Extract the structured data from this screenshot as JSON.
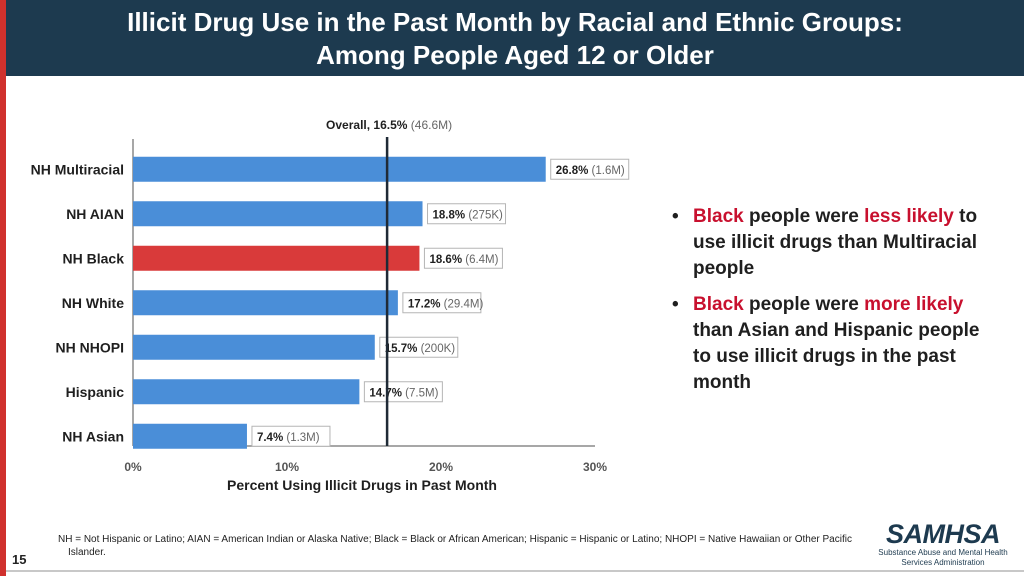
{
  "slide": {
    "title_line1": "Illicit Drug Use in the Past Month by Racial and Ethnic Groups:",
    "title_line2": "Among People Aged 12 or Older",
    "page_number": "15",
    "footnote": "NH = Not Hispanic or Latino; AIAN = American Indian or Alaska Native; Black = Black or African American; Hispanic = Hispanic or Latino; NHOPI = Native Hawaiian or Other Pacific Islander.",
    "logo_word": "SAMHSA",
    "logo_sub_line1": "Substance Abuse and Mental Health",
    "logo_sub_line2": "Services Administration"
  },
  "bullets": [
    {
      "dot": "•",
      "parts": [
        {
          "text": "Black",
          "style": "red"
        },
        {
          "text": " people were ",
          "style": "normal"
        },
        {
          "text": "less likely",
          "style": "red"
        },
        {
          "text": " to use illicit drugs than Multiracial people",
          "style": "normal"
        }
      ]
    },
    {
      "dot": "•",
      "parts": [
        {
          "text": "Black",
          "style": "red"
        },
        {
          "text": " people were ",
          "style": "normal"
        },
        {
          "text": "more likely",
          "style": "red"
        },
        {
          "text": " than Asian and Hispanic people to use illicit drugs in the past month",
          "style": "normal"
        }
      ]
    }
  ],
  "colors": {
    "header_bg": "#1d3a4f",
    "bar_default": "#4a8ed8",
    "bar_highlight": "#d93a3a",
    "accent_red": "#c8102e",
    "reference_line": "#1f2a36"
  },
  "chart_data": {
    "type": "bar",
    "orientation": "horizontal",
    "categories": [
      "NH Multiracial",
      "NH AIAN",
      "NH Black",
      "NH White",
      "NH NHOPI",
      "Hispanic",
      "NH Asian"
    ],
    "values": [
      26.8,
      18.8,
      18.6,
      17.2,
      15.7,
      14.7,
      7.4
    ],
    "data_labels": [
      "26.8%",
      "18.8%",
      "18.6%",
      "17.2%",
      "15.7%",
      "14.7%",
      "7.4%"
    ],
    "counts": [
      "(1.6M)",
      "(275K)",
      "(6.4M)",
      "(29.4M)",
      "(200K)",
      "(7.5M)",
      "(1.3M)"
    ],
    "highlight_category": "NH Black",
    "reference": {
      "value": 16.5,
      "label": "Overall, 16.5%",
      "count": "(46.6M)"
    },
    "xlim": [
      0,
      30
    ],
    "xticks": [
      0,
      10,
      20,
      30
    ],
    "xtick_labels": [
      "0%",
      "10%",
      "20%",
      "30%"
    ],
    "xlabel": "Percent Using Illicit Drugs in Past Month",
    "grid": false,
    "legend": "none"
  }
}
